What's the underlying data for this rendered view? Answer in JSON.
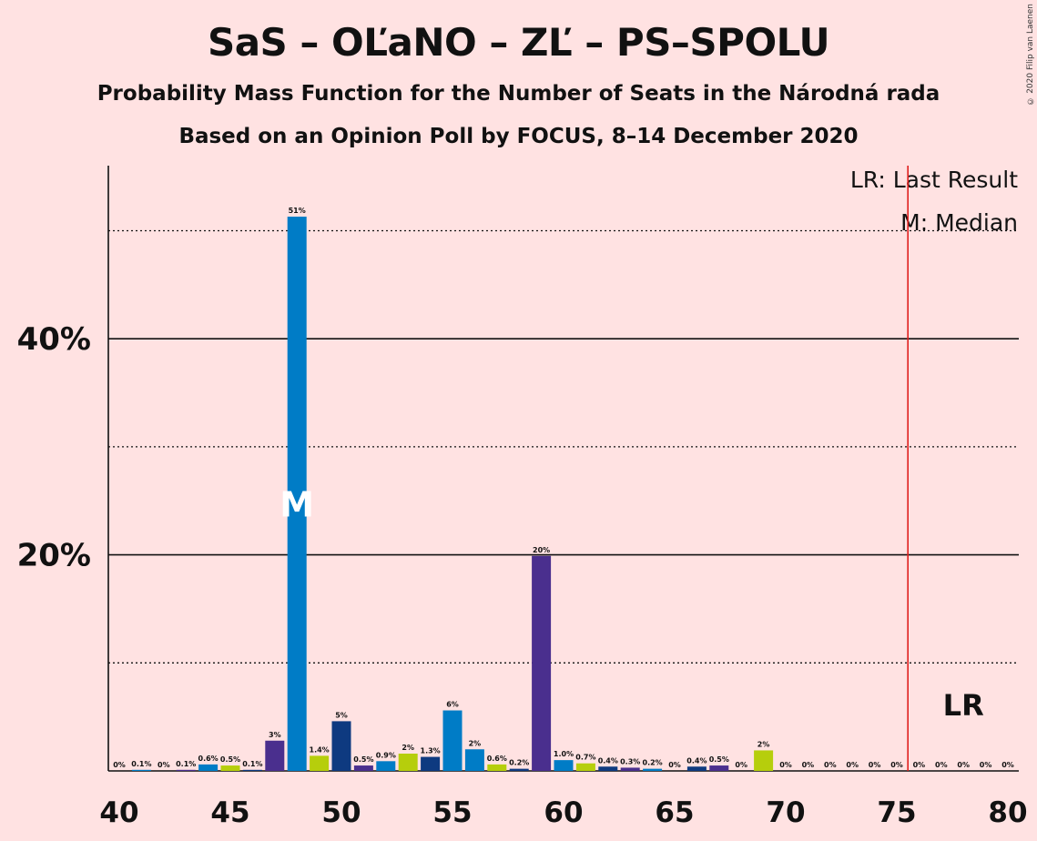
{
  "title": "SaS – OĽaNO – ZĽ – PS–SPOLU",
  "subtitle": "Probability Mass Function for the Number of Seats in the Národná rada",
  "source": "Based on an Opinion Poll by FOCUS, 8–14 December 2020",
  "copyright": "© 2020 Filip van Laenen",
  "legend": {
    "last_result": "LR: Last Result",
    "median": "M: Median"
  },
  "markers": {
    "median_label": "M",
    "last_result_label": "LR"
  },
  "colors": {
    "background": "#FFE2E2",
    "sas": "#0E3A80",
    "olano": "#007CC6",
    "zl": "#B6CE0C",
    "ps_spolu": "#4A2F8E",
    "last_result_line": "#E0201E"
  },
  "chart_data": {
    "type": "bar",
    "x_min": 40,
    "x_max": 80,
    "ylim": [
      0,
      55
    ],
    "y_ticks": [
      {
        "value": 10,
        "label": "",
        "style": "dotted"
      },
      {
        "value": 20,
        "label": "20%",
        "style": "solid"
      },
      {
        "value": 30,
        "label": "",
        "style": "dotted"
      },
      {
        "value": 40,
        "label": "40%",
        "style": "solid"
      },
      {
        "value": 50,
        "label": "",
        "style": "dotted"
      }
    ],
    "x_ticks": [
      40,
      45,
      50,
      55,
      60,
      65,
      70,
      75,
      80
    ],
    "median": 48,
    "last_result": 76,
    "bars": [
      {
        "x": 40,
        "value": 0,
        "label": "0%",
        "color": "#0E3A80"
      },
      {
        "x": 41,
        "value": 0.1,
        "label": "0.1%",
        "color": "#007CC6"
      },
      {
        "x": 42,
        "value": 0,
        "label": "0%",
        "color": "#B6CE0C"
      },
      {
        "x": 43,
        "value": 0.1,
        "label": "0.1%",
        "color": "#4A2F8E"
      },
      {
        "x": 44,
        "value": 0.6,
        "label": "0.6%",
        "color": "#007CC6"
      },
      {
        "x": 45,
        "value": 0.5,
        "label": "0.5%",
        "color": "#B6CE0C"
      },
      {
        "x": 46,
        "value": 0.1,
        "label": "0.1%",
        "color": "#0E3A80"
      },
      {
        "x": 47,
        "value": 2.8,
        "label": "3%",
        "color": "#4A2F8E"
      },
      {
        "x": 48,
        "value": 51.3,
        "label": "51%",
        "color": "#007CC6"
      },
      {
        "x": 49,
        "value": 1.4,
        "label": "1.4%",
        "color": "#B6CE0C"
      },
      {
        "x": 50,
        "value": 4.6,
        "label": "5%",
        "color": "#0E3A80"
      },
      {
        "x": 51,
        "value": 0.5,
        "label": "0.5%",
        "color": "#4A2F8E"
      },
      {
        "x": 52,
        "value": 0.9,
        "label": "0.9%",
        "color": "#007CC6"
      },
      {
        "x": 53,
        "value": 1.6,
        "label": "2%",
        "color": "#B6CE0C"
      },
      {
        "x": 54,
        "value": 1.3,
        "label": "1.3%",
        "color": "#0E3A80"
      },
      {
        "x": 55,
        "value": 5.6,
        "label": "6%",
        "color": "#007CC6"
      },
      {
        "x": 56,
        "value": 2.0,
        "label": "2%",
        "color": "#007CC6"
      },
      {
        "x": 57,
        "value": 0.6,
        "label": "0.6%",
        "color": "#B6CE0C"
      },
      {
        "x": 58,
        "value": 0.2,
        "label": "0.2%",
        "color": "#0E3A80"
      },
      {
        "x": 59,
        "value": 19.9,
        "label": "20%",
        "color": "#4A2F8E"
      },
      {
        "x": 60,
        "value": 1.0,
        "label": "1.0%",
        "color": "#007CC6"
      },
      {
        "x": 61,
        "value": 0.7,
        "label": "0.7%",
        "color": "#B6CE0C"
      },
      {
        "x": 62,
        "value": 0.4,
        "label": "0.4%",
        "color": "#0E3A80"
      },
      {
        "x": 63,
        "value": 0.3,
        "label": "0.3%",
        "color": "#4A2F8E"
      },
      {
        "x": 64,
        "value": 0.2,
        "label": "0.2%",
        "color": "#007CC6"
      },
      {
        "x": 65,
        "value": 0,
        "label": "0%",
        "color": "#B6CE0C"
      },
      {
        "x": 66,
        "value": 0.4,
        "label": "0.4%",
        "color": "#0E3A80"
      },
      {
        "x": 67,
        "value": 0.5,
        "label": "0.5%",
        "color": "#4A2F8E"
      },
      {
        "x": 68,
        "value": 0,
        "label": "0%",
        "color": "#007CC6"
      },
      {
        "x": 69,
        "value": 1.9,
        "label": "2%",
        "color": "#B6CE0C"
      },
      {
        "x": 70,
        "value": 0,
        "label": "0%",
        "color": "#0E3A80"
      },
      {
        "x": 71,
        "value": 0,
        "label": "0%",
        "color": "#4A2F8E"
      },
      {
        "x": 72,
        "value": 0,
        "label": "0%",
        "color": "#007CC6"
      },
      {
        "x": 73,
        "value": 0,
        "label": "0%",
        "color": "#B6CE0C"
      },
      {
        "x": 74,
        "value": 0,
        "label": "0%",
        "color": "#0E3A80"
      },
      {
        "x": 75,
        "value": 0,
        "label": "0%",
        "color": "#4A2F8E"
      },
      {
        "x": 76,
        "value": 0,
        "label": "0%",
        "color": "#007CC6"
      },
      {
        "x": 77,
        "value": 0,
        "label": "0%",
        "color": "#B6CE0C"
      },
      {
        "x": 78,
        "value": 0,
        "label": "0%",
        "color": "#0E3A80"
      },
      {
        "x": 79,
        "value": 0,
        "label": "0%",
        "color": "#4A2F8E"
      },
      {
        "x": 80,
        "value": 0,
        "label": "0%",
        "color": "#007CC6"
      }
    ]
  }
}
